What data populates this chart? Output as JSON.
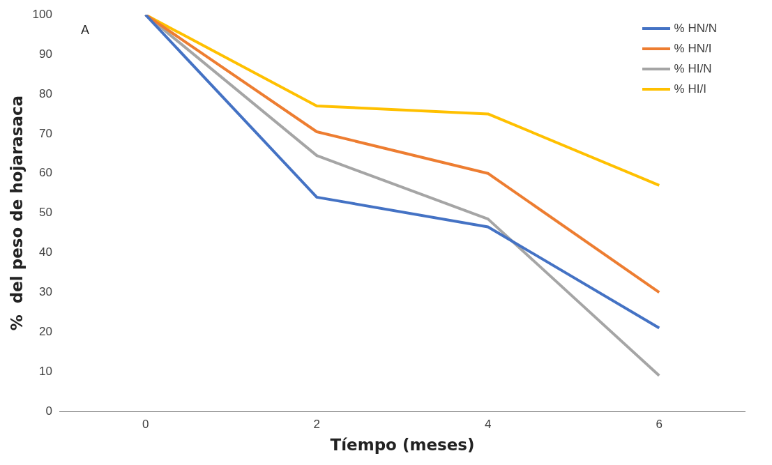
{
  "chart_data": {
    "type": "line",
    "xlabel": "Tíempo (meses)",
    "ylabel": "%  del peso de hojarasaca",
    "annotations": [
      "A"
    ],
    "categories": [
      "0",
      "2",
      "4",
      "6"
    ],
    "ylim": [
      0,
      100
    ],
    "yticks": [
      0,
      10,
      20,
      30,
      40,
      50,
      60,
      70,
      80,
      90,
      100
    ],
    "grid": false,
    "legend": "top right",
    "marker": "none",
    "line_style": "solid",
    "series": [
      {
        "name": "% HN/N",
        "color": "#4472c4",
        "values": [
          100,
          54,
          46.5,
          21
        ]
      },
      {
        "name": "% HN/I",
        "color": "#ed7d31",
        "values": [
          100,
          70.5,
          60,
          30
        ]
      },
      {
        "name": "% HI/N",
        "color": "#a5a5a5",
        "values": [
          100,
          64.5,
          48.5,
          9
        ]
      },
      {
        "name": "% HI/I",
        "color": "#ffc000",
        "values": [
          100,
          77,
          75,
          57
        ]
      }
    ]
  }
}
